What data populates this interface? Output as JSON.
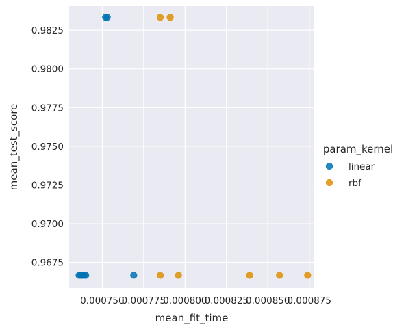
{
  "chart_data": {
    "type": "scatter",
    "xlabel": "mean_fit_time",
    "ylabel": "mean_test_score",
    "xlim": [
      0.00073,
      0.000878
    ],
    "ylim": [
      0.96585,
      0.98405
    ],
    "x_ticks": [
      0.00075,
      0.000775,
      0.0008,
      0.000825,
      0.00085,
      0.000875
    ],
    "x_tick_labels": [
      "0.000750",
      "0.000775",
      "0.000800",
      "0.000825",
      "0.000850",
      "0.000875"
    ],
    "y_ticks": [
      0.9675,
      0.97,
      0.9725,
      0.975,
      0.9775,
      0.98,
      0.9825
    ],
    "y_tick_labels": [
      "0.9675",
      "0.9700",
      "0.9725",
      "0.9750",
      "0.9775",
      "0.9800",
      "0.9825"
    ],
    "grid": true,
    "legend": {
      "title": "param_kernel",
      "placement": "right"
    },
    "series": [
      {
        "name": "linear",
        "color": "#0173b2",
        "points": [
          {
            "x": 0.000736,
            "y": 0.96667
          },
          {
            "x": 0.000737,
            "y": 0.96667
          },
          {
            "x": 0.000738,
            "y": 0.96667
          },
          {
            "x": 0.000739,
            "y": 0.96667
          },
          {
            "x": 0.00074,
            "y": 0.96667
          },
          {
            "x": 0.000752,
            "y": 0.98333
          },
          {
            "x": 0.000753,
            "y": 0.98333
          },
          {
            "x": 0.000769,
            "y": 0.96667
          }
        ]
      },
      {
        "name": "rbf",
        "color": "#de8f05",
        "points": [
          {
            "x": 0.000785,
            "y": 0.98333
          },
          {
            "x": 0.000791,
            "y": 0.98333
          },
          {
            "x": 0.000785,
            "y": 0.96667
          },
          {
            "x": 0.000796,
            "y": 0.96667
          },
          {
            "x": 0.000839,
            "y": 0.96667
          },
          {
            "x": 0.000857,
            "y": 0.96667
          },
          {
            "x": 0.000874,
            "y": 0.96667
          }
        ]
      }
    ]
  },
  "style": {
    "plot_bg": "#eaeaf2",
    "grid_color": "#ffffff",
    "text_color": "#262626"
  }
}
